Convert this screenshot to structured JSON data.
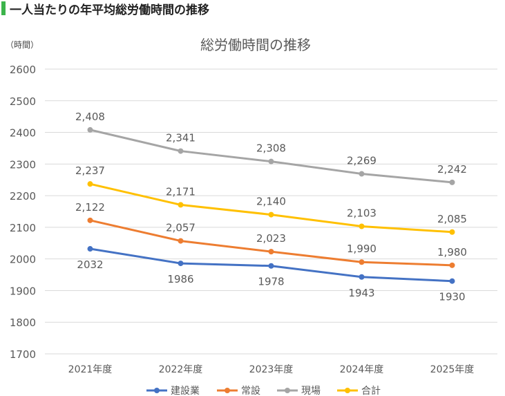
{
  "page": {
    "heading": "一人当たりの年平均総労働時間の推移",
    "heading_bar_color": "#3cb44b"
  },
  "chart_data": {
    "type": "line",
    "title": "総労働時間の推移",
    "ylabel": "（時間）",
    "xlabel": "",
    "categories": [
      "2021年度",
      "2022年度",
      "2023年度",
      "2024年度",
      "2025年度"
    ],
    "ylim": [
      1700,
      2600
    ],
    "yticks": [
      "1700",
      "1800",
      "1900",
      "2000",
      "2100",
      "2200",
      "2300",
      "2400",
      "2500",
      "2600"
    ],
    "grid": true,
    "legend_position": "bottom",
    "series": [
      {
        "name": "建設業",
        "color": "#4472c4",
        "values": [
          2032,
          1986,
          1978,
          1943,
          1930
        ],
        "labels": [
          "2032",
          "1986",
          "1978",
          "1943",
          "1930"
        ],
        "label_position": "below"
      },
      {
        "name": "常設",
        "color": "#ed7d31",
        "values": [
          2122,
          2057,
          2023,
          1990,
          1980
        ],
        "labels": [
          "2,122",
          "2,057",
          "2,023",
          "1,990",
          "1,980"
        ],
        "label_position": "above"
      },
      {
        "name": "現場",
        "color": "#a5a5a5",
        "values": [
          2408,
          2341,
          2308,
          2269,
          2242
        ],
        "labels": [
          "2,408",
          "2,341",
          "2,308",
          "2,269",
          "2,242"
        ],
        "label_position": "above"
      },
      {
        "name": "合計",
        "color": "#ffc000",
        "values": [
          2237,
          2171,
          2140,
          2103,
          2085
        ],
        "labels": [
          "2,237",
          "2,171",
          "2,140",
          "2,103",
          "2,085"
        ],
        "label_position": "above"
      }
    ]
  }
}
